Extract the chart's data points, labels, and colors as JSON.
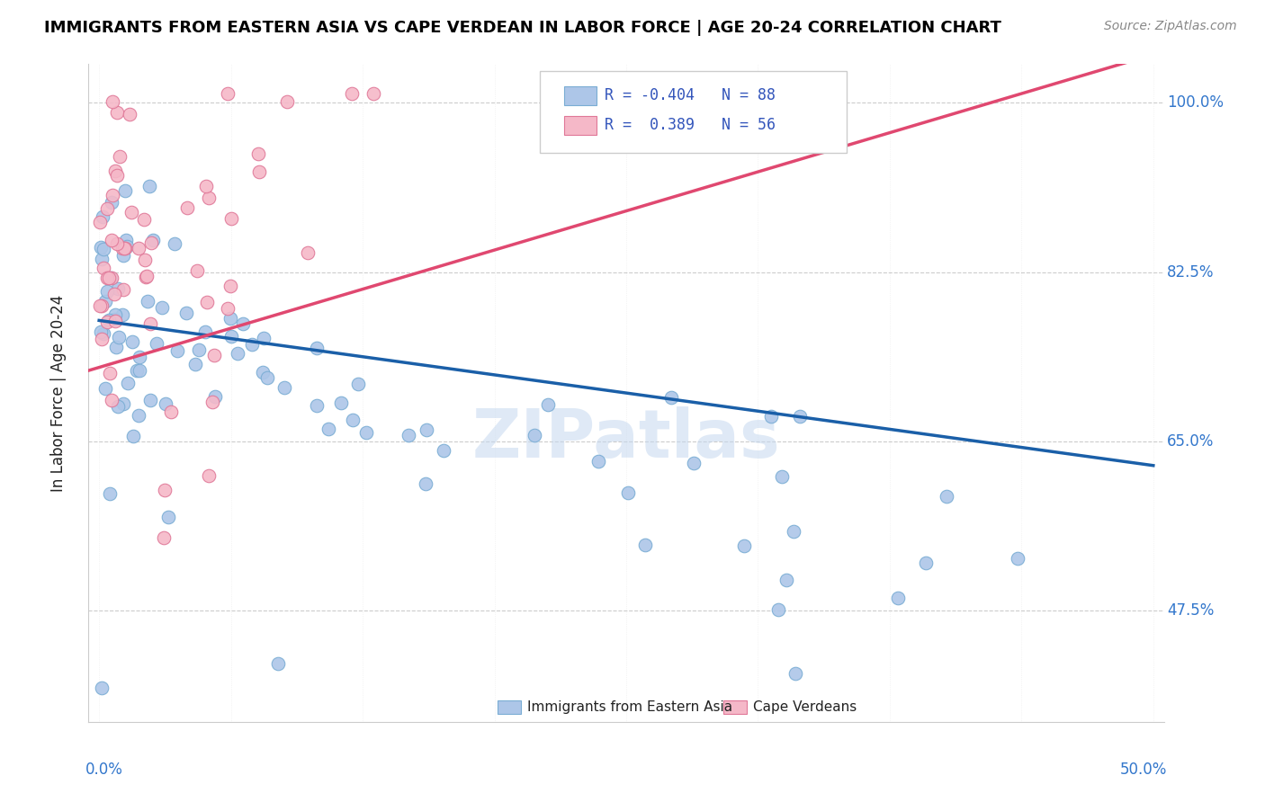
{
  "title": "IMMIGRANTS FROM EASTERN ASIA VS CAPE VERDEAN IN LABOR FORCE | AGE 20-24 CORRELATION CHART",
  "source": "Source: ZipAtlas.com",
  "ylabel": "In Labor Force | Age 20-24",
  "legend_r_blue": "-0.404",
  "legend_n_blue": "88",
  "legend_r_pink": "0.389",
  "legend_n_pink": "56",
  "blue_color": "#adc6e8",
  "blue_edge": "#7aadd4",
  "pink_color": "#f5b8c8",
  "pink_edge": "#e07898",
  "blue_line_color": "#1a5fa8",
  "pink_line_color": "#e04870",
  "watermark": "ZIPatlas",
  "yaxis_ticks": [
    0.475,
    0.65,
    0.825,
    1.0
  ],
  "yaxis_labels": [
    "47.5%",
    "65.0%",
    "82.5%",
    "100.0%"
  ],
  "xlim": [
    -0.005,
    0.505
  ],
  "ylim": [
    0.36,
    1.04
  ],
  "figsize": [
    14.06,
    8.92
  ],
  "dpi": 100,
  "blue_line_x0": 0.0,
  "blue_line_y0": 0.775,
  "blue_line_x1": 0.5,
  "blue_line_y1": 0.625,
  "pink_line_x0": -0.01,
  "pink_line_y0": 0.72,
  "pink_line_x1": 0.5,
  "pink_line_y1": 1.05
}
